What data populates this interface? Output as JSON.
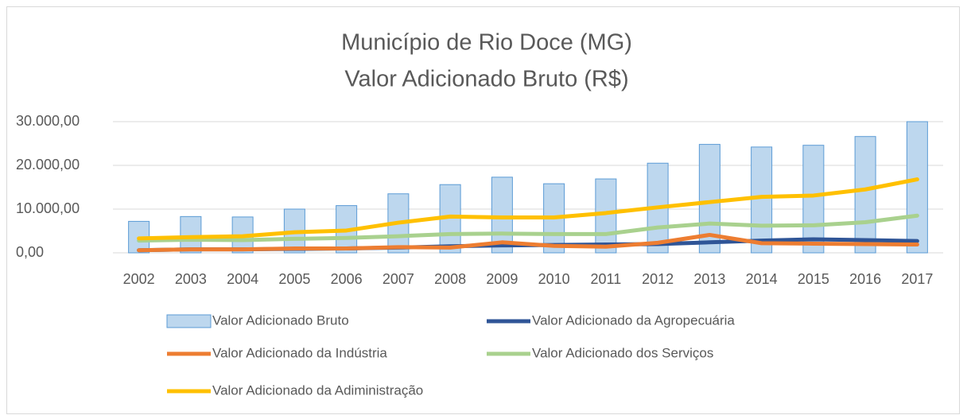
{
  "chart_data": {
    "type": "combo",
    "title": [
      "Município de Rio Doce (MG)",
      "Valor Adicionado Bruto (R$)"
    ],
    "categories": [
      "2002",
      "2003",
      "2004",
      "2005",
      "2006",
      "2007",
      "2008",
      "2009",
      "2010",
      "2011",
      "2012",
      "2013",
      "2014",
      "2015",
      "2016",
      "2017"
    ],
    "ylim": [
      0,
      30000
    ],
    "yticks": [
      {
        "value": 0,
        "label": "0,00"
      },
      {
        "value": 10000,
        "label": "10.000,00"
      },
      {
        "value": 20000,
        "label": "20.000,00"
      },
      {
        "value": 30000,
        "label": "30.000,00"
      }
    ],
    "grid": true,
    "legend": "bottom",
    "series": [
      {
        "name": "Valor Adicionado Bruto",
        "type": "bar",
        "color": "#bdd7ee",
        "stroke": "#5b9bd5",
        "values": [
          7200,
          8300,
          8200,
          10000,
          10800,
          13500,
          15600,
          17300,
          15800,
          16900,
          20500,
          24800,
          24200,
          24600,
          26600,
          30000
        ]
      },
      {
        "name": "Valor Adicionado da Agropecuária",
        "type": "line",
        "color": "#2f5597",
        "values": [
          600,
          800,
          800,
          900,
          1000,
          1200,
          1500,
          1700,
          1800,
          1900,
          2000,
          2400,
          2800,
          3100,
          2900,
          2700
        ]
      },
      {
        "name": "Valor Adicionado da Indústria",
        "type": "line",
        "color": "#ed7d31",
        "values": [
          600,
          800,
          800,
          1000,
          1000,
          1300,
          1200,
          2400,
          1600,
          1400,
          2300,
          4100,
          2200,
          2100,
          2000,
          1900
        ]
      },
      {
        "name": "Valor Adicionado dos Serviços",
        "type": "line",
        "color": "#a9d18e",
        "values": [
          2800,
          3000,
          2900,
          3200,
          3400,
          3800,
          4300,
          4400,
          4300,
          4300,
          5800,
          6700,
          6200,
          6300,
          7000,
          8500
        ]
      },
      {
        "name": "Valor Adicionado da Adiministração",
        "type": "line",
        "color": "#ffc000",
        "values": [
          3300,
          3600,
          3800,
          4700,
          5100,
          6900,
          8300,
          8100,
          8100,
          9100,
          10400,
          11600,
          12800,
          13100,
          14500,
          16800
        ]
      }
    ]
  }
}
